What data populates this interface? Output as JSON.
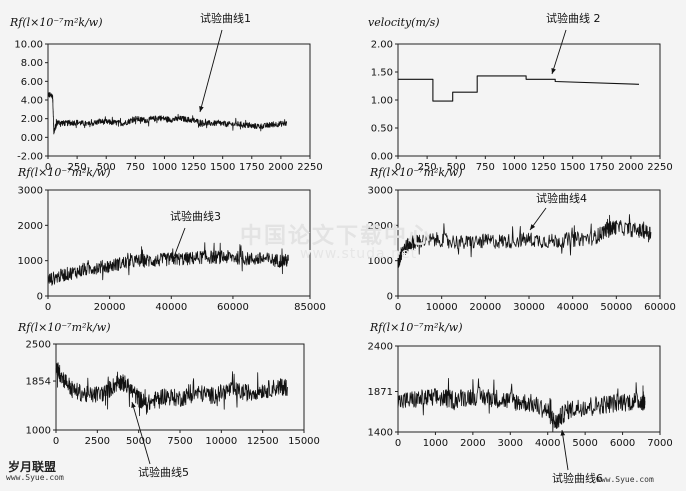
{
  "watermark": {
    "main": "中国论文下载中心",
    "sub": "www.studa.net",
    "logo": "岁月联盟",
    "logo_url": "www.Syue.com",
    "site_url": "www.Syue.com"
  },
  "chart_data": [
    {
      "type": "line",
      "ylabel": "Rf(l×10⁻⁷m²k/w)",
      "annotation": "试验曲线1",
      "xlim": [
        0,
        2250
      ],
      "ylim": [
        -2,
        10
      ],
      "xticks": [
        0,
        250,
        500,
        750,
        1000,
        1250,
        1500,
        1750,
        2000,
        2250
      ],
      "xtick_labels": [
        "0",
        "250",
        "500",
        "750",
        "1000",
        "1250",
        "1500",
        "1750",
        "2000",
        "2250"
      ],
      "yticks": [
        -2,
        0,
        2,
        4,
        6,
        8,
        10
      ],
      "ytick_labels": [
        "-2.00",
        "0.00",
        "2.00",
        "4.00",
        "6.00",
        "8.00",
        "10.00"
      ],
      "series": [
        {
          "x": [
            0,
            40,
            50,
            80,
            150,
            250,
            350,
            450,
            550,
            650,
            750,
            850,
            950,
            1050,
            1150,
            1250,
            1350,
            1450,
            1550,
            1650,
            1750,
            1850,
            1950,
            2050
          ],
          "y": [
            4.6,
            4.4,
            0.6,
            1.6,
            1.5,
            1.6,
            1.4,
            1.7,
            1.6,
            1.5,
            2.0,
            1.8,
            2.1,
            1.9,
            2.0,
            1.8,
            1.5,
            1.5,
            1.4,
            1.4,
            1.2,
            1.2,
            1.4,
            1.5
          ],
          "noise": 0.6
        }
      ]
    },
    {
      "type": "line",
      "ylabel": "velocity(m/s)",
      "annotation": "试验曲线 2",
      "xlim": [
        0,
        2250
      ],
      "ylim": [
        0,
        2
      ],
      "xticks": [
        0,
        250,
        500,
        750,
        1000,
        1250,
        1500,
        1750,
        2000,
        2250
      ],
      "xtick_labels": [
        "0",
        "250",
        "500",
        "750",
        "1000",
        "1250",
        "1500",
        "1750",
        "2000",
        "2250"
      ],
      "yticks": [
        0,
        0.5,
        1,
        1.5,
        2
      ],
      "ytick_labels": [
        "0.00",
        "0.50",
        "1.00",
        "1.50",
        "2.00"
      ],
      "series": [
        {
          "x": [
            0,
            300,
            300,
            470,
            470,
            680,
            680,
            1100,
            1100,
            1350,
            1350,
            2070
          ],
          "y": [
            1.37,
            1.37,
            0.98,
            0.98,
            1.14,
            1.14,
            1.43,
            1.43,
            1.37,
            1.37,
            1.33,
            1.28
          ],
          "noise": 0
        }
      ]
    },
    {
      "type": "line",
      "ylabel": "Rf(l×10⁻⁷m²k/w)",
      "annotation": "试验曲线3",
      "xlim": [
        0,
        85000
      ],
      "ylim": [
        0,
        3000
      ],
      "xticks": [
        0,
        20000,
        40000,
        60000,
        85000
      ],
      "xtick_labels": [
        "0",
        "20000",
        "40000",
        "60000",
        "85000"
      ],
      "yticks": [
        0,
        1000,
        2000,
        3000
      ],
      "ytick_labels": [
        "0",
        "1000",
        "2000",
        "3000"
      ],
      "series": [
        {
          "x": [
            0,
            5000,
            10000,
            15000,
            20000,
            25000,
            30000,
            35000,
            40000,
            45000,
            50000,
            55000,
            60000,
            65000,
            70000,
            75000,
            78000
          ],
          "y": [
            450,
            600,
            700,
            800,
            850,
            950,
            1000,
            1000,
            1050,
            1050,
            1100,
            1100,
            1100,
            1050,
            1050,
            1000,
            1000
          ],
          "noise": 380
        }
      ]
    },
    {
      "type": "line",
      "ylabel": "Rf(l×10⁻⁷m²k/w)",
      "annotation": "试验曲线4",
      "xlim": [
        0,
        60000
      ],
      "ylim": [
        0,
        3000
      ],
      "xticks": [
        0,
        10000,
        20000,
        30000,
        40000,
        50000,
        60000
      ],
      "xtick_labels": [
        "0",
        "10000",
        "20000",
        "30000",
        "40000",
        "50000",
        "60000"
      ],
      "yticks": [
        0,
        1000,
        2000,
        3000
      ],
      "ytick_labels": [
        "0",
        "1000",
        "2000",
        "3000"
      ],
      "series": [
        {
          "x": [
            0,
            1000,
            3000,
            5000,
            10000,
            15000,
            20000,
            25000,
            30000,
            35000,
            40000,
            45000,
            48000,
            50000,
            55000,
            58000
          ],
          "y": [
            900,
            1300,
            1500,
            1550,
            1600,
            1500,
            1550,
            1550,
            1600,
            1550,
            1600,
            1650,
            1900,
            1950,
            1850,
            1800
          ],
          "noise": 420
        }
      ]
    },
    {
      "type": "line",
      "ylabel": "Rf(l×10⁻⁷m²k/w)",
      "annotation": "试验曲线5",
      "xlim": [
        0,
        15000
      ],
      "ylim": [
        1000,
        2500
      ],
      "xticks": [
        0,
        2500,
        5000,
        7500,
        10000,
        12500,
        15000
      ],
      "xtick_labels": [
        "0",
        "2500",
        "5000",
        "7500",
        "10000",
        "12500",
        "15000"
      ],
      "yticks": [
        1000,
        1854,
        2500
      ],
      "ytick_labels": [
        "1000",
        "1854",
        "2500"
      ],
      "series": [
        {
          "x": [
            0,
            300,
            1000,
            2000,
            3000,
            3800,
            4200,
            5000,
            5500,
            6500,
            7500,
            8500,
            9500,
            10500,
            11500,
            12500,
            13500,
            14000
          ],
          "y": [
            2100,
            1950,
            1700,
            1600,
            1650,
            1850,
            1800,
            1550,
            1450,
            1600,
            1550,
            1650,
            1600,
            1700,
            1650,
            1700,
            1750,
            1750
          ],
          "noise": 300
        }
      ]
    },
    {
      "type": "line",
      "ylabel": "Rf(l×10⁻⁷m²k/w)",
      "annotation": "试验曲线6",
      "xlim": [
        0,
        7000
      ],
      "ylim": [
        1400,
        2400
      ],
      "xticks": [
        0,
        1000,
        2000,
        3000,
        4000,
        5000,
        6000,
        7000
      ],
      "xtick_labels": [
        "0",
        "1000",
        "2000",
        "3000",
        "4000",
        "5000",
        "6000",
        "7000"
      ],
      "yticks": [
        1400,
        1871,
        2400
      ],
      "ytick_labels": [
        "1400",
        "1871",
        "2400"
      ],
      "series": [
        {
          "x": [
            0,
            500,
            1000,
            1500,
            2000,
            2500,
            3000,
            3500,
            4000,
            4200,
            4500,
            5000,
            5500,
            6000,
            6500,
            6600
          ],
          "y": [
            1750,
            1780,
            1800,
            1780,
            1820,
            1800,
            1760,
            1740,
            1650,
            1500,
            1650,
            1700,
            1720,
            1750,
            1760,
            1760
          ],
          "noise": 220
        }
      ]
    }
  ]
}
